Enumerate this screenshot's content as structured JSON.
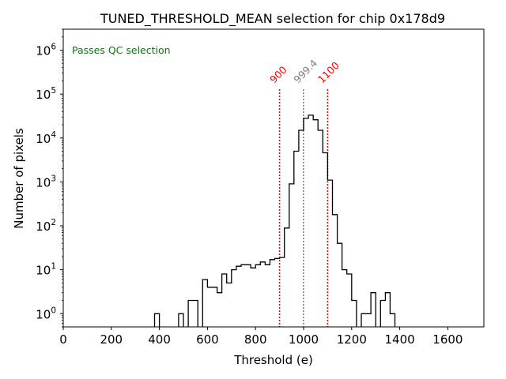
{
  "chart_data": {
    "type": "histogram",
    "title": "TUNED_THRESHOLD_MEAN selection for chip 0x178d9",
    "xlabel": "Threshold (e)",
    "ylabel": "Number of pixels",
    "xlim": [
      0,
      1750
    ],
    "ylim": [
      0.5,
      3000000
    ],
    "yscale": "log",
    "grid": false,
    "x_ticks": [
      "0",
      "200",
      "400",
      "600",
      "800",
      "1000",
      "1200",
      "1400",
      "1600"
    ],
    "y_ticks": [
      {
        "base": "10",
        "exp": "0"
      },
      {
        "base": "10",
        "exp": "1"
      },
      {
        "base": "10",
        "exp": "2"
      },
      {
        "base": "10",
        "exp": "3"
      },
      {
        "base": "10",
        "exp": "4"
      },
      {
        "base": "10",
        "exp": "5"
      },
      {
        "base": "10",
        "exp": "6"
      }
    ],
    "annotation": {
      "text": "Passes QC selection",
      "color": "#008000"
    },
    "vlines": [
      {
        "x": 900,
        "label": "900",
        "color": "#ff0000"
      },
      {
        "x": 999.4,
        "label": "999.4",
        "color": "#808080"
      },
      {
        "x": 1100,
        "label": "1100",
        "color": "#ff0000"
      }
    ],
    "bins": {
      "start": 0,
      "width": 20,
      "counts": [
        0,
        0,
        0,
        0,
        0,
        0,
        0,
        0,
        0,
        0,
        0,
        0,
        0,
        0,
        0,
        0,
        0,
        0,
        0,
        1,
        0,
        0,
        0,
        0,
        1,
        0,
        2,
        2,
        0,
        6,
        4,
        4,
        3,
        8,
        5,
        10,
        12,
        13,
        13,
        11,
        13,
        15,
        13,
        17,
        18,
        19,
        89,
        900,
        5000,
        15000,
        28000,
        33000,
        26000,
        15000,
        4600,
        1100,
        180,
        40,
        10,
        8,
        2,
        0,
        1,
        1,
        3,
        0,
        2,
        3,
        1,
        0,
        0,
        0,
        0,
        0,
        0,
        0,
        0,
        0,
        0,
        0,
        0,
        0,
        0,
        0,
        0,
        0,
        0,
        0
      ]
    }
  }
}
